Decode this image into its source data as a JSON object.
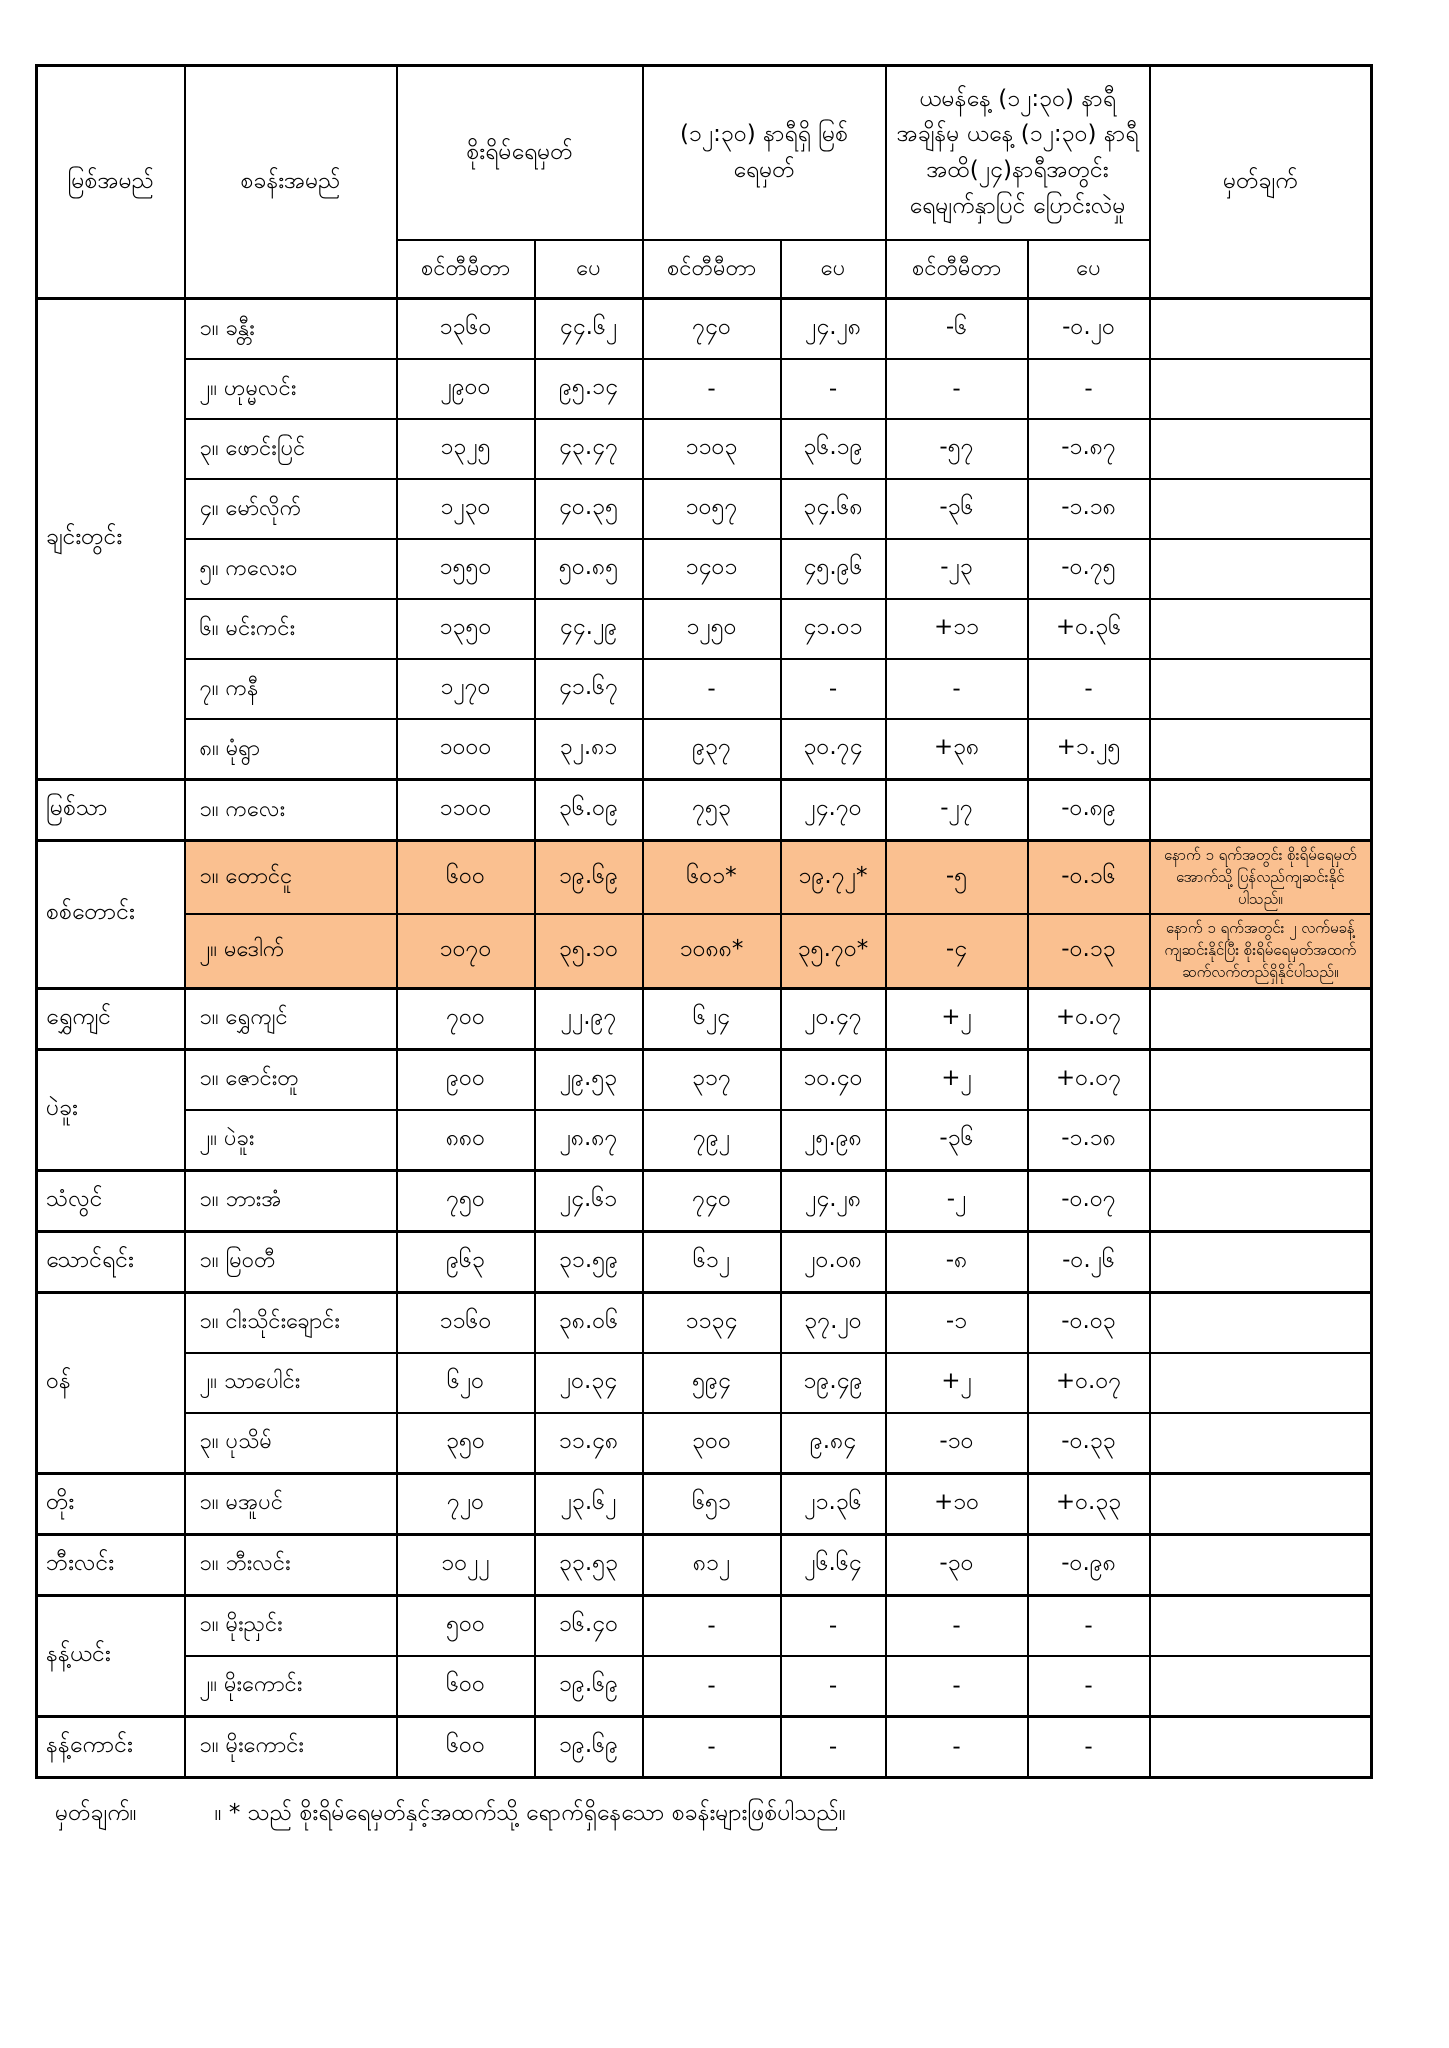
{
  "colors": {
    "highlight": "#FAC090",
    "border": "#000000",
    "background": "#FFFFFF",
    "text": "#000000"
  },
  "table": {
    "headers": {
      "river": "မြစ်အမည်",
      "station": "စခန်းအမည်",
      "danger_level": "စိုးရိမ်ရေမှတ်",
      "current_level": "(၁၂:၃၀) နာရီရှိ မြစ်ရေမှတ်",
      "change_24h": "ယမန်နေ့ (၁၂:၃၀) နာရီ အချိန်မှ ယနေ့ (၁၂:၃၀) နာရီအထိ(၂၄)နာရီအတွင်း ရေမျက်နှာပြင် ပြောင်းလဲမှု",
      "remark": "မှတ်ချက်",
      "unit_cm": "စင်တီမီတာ",
      "unit_ft": "ပေ"
    },
    "groups": [
      {
        "river": "ချင်းတွင်း",
        "stations": [
          {
            "name": "၁။ ခန္တီး",
            "danger_cm": "၁၃၆၀",
            "danger_ft": "၄၄.၆၂",
            "current_cm": "၇၄၀",
            "current_ft": "၂၄.၂၈",
            "change_cm": "-၆",
            "change_ft": "-၀.၂၀",
            "remark": "",
            "highlight": false
          },
          {
            "name": "၂။ ဟုမ္မလင်း",
            "danger_cm": "၂၉၀၀",
            "danger_ft": "၉၅.၁၄",
            "current_cm": "-",
            "current_ft": "-",
            "change_cm": "-",
            "change_ft": "-",
            "remark": "",
            "highlight": false
          },
          {
            "name": "၃။ ဖောင်းပြင်",
            "danger_cm": "၁၃၂၅",
            "danger_ft": "၄၃.၄၇",
            "current_cm": "၁၁၀၃",
            "current_ft": "၃၆.၁၉",
            "change_cm": "-၅၇",
            "change_ft": "-၁.၈၇",
            "remark": "",
            "highlight": false
          },
          {
            "name": "၄။ မော်လိုက်",
            "danger_cm": "၁၂၃၀",
            "danger_ft": "၄၀.၃၅",
            "current_cm": "၁၀၅၇",
            "current_ft": "၃၄.၆၈",
            "change_cm": "-၃၆",
            "change_ft": "-၁.၁၈",
            "remark": "",
            "highlight": false
          },
          {
            "name": "၅။ ကလေးဝ",
            "danger_cm": "၁၅၅၀",
            "danger_ft": "၅၀.၈၅",
            "current_cm": "၁၄၀၁",
            "current_ft": "၄၅.၉၆",
            "change_cm": "-၂၃",
            "change_ft": "-၀.၇၅",
            "remark": "",
            "highlight": false
          },
          {
            "name": "၆။ မင်းကင်း",
            "danger_cm": "၁၃၅၀",
            "danger_ft": "၄၄.၂၉",
            "current_cm": "၁၂၅၀",
            "current_ft": "၄၁.၀၁",
            "change_cm": "+၁၁",
            "change_ft": "+၀.၃၆",
            "remark": "",
            "highlight": false
          },
          {
            "name": "၇။ ကနီ",
            "danger_cm": "၁၂၇၀",
            "danger_ft": "၄၁.၆၇",
            "current_cm": "-",
            "current_ft": "-",
            "change_cm": "-",
            "change_ft": "-",
            "remark": "",
            "highlight": false
          },
          {
            "name": "၈။ မုံရွာ",
            "danger_cm": "၁၀၀၀",
            "danger_ft": "၃၂.၈၁",
            "current_cm": "၉၃၇",
            "current_ft": "၃၀.၇၄",
            "change_cm": "+၃၈",
            "change_ft": "+၁.၂၅",
            "remark": "",
            "highlight": false
          }
        ]
      },
      {
        "river": "မြစ်သာ",
        "stations": [
          {
            "name": "၁။ ကလေး",
            "danger_cm": "၁၁၀၀",
            "danger_ft": "၃၆.၀၉",
            "current_cm": "၇၅၃",
            "current_ft": "၂၄.၇၀",
            "change_cm": "-၂၇",
            "change_ft": "-၀.၈၉",
            "remark": "",
            "highlight": false
          }
        ]
      },
      {
        "river": "စစ်တောင်း",
        "stations": [
          {
            "name": "၁။ တောင်ငူ",
            "danger_cm": "၆၀၀",
            "danger_ft": "၁၉.၆၉",
            "current_cm": "၆၀၁*",
            "current_ft": "၁၉.၇၂*",
            "change_cm": "-၅",
            "change_ft": "-၀.၁၆",
            "remark": "နောက် ၁ ရက်အတွင်း စိုးရိမ်ရေမှတ်အောက်သို့ ပြန်လည်ကျဆင်းနိုင်ပါသည်။",
            "highlight": true
          },
          {
            "name": "၂။ မဒေါက်",
            "danger_cm": "၁၀၇၀",
            "danger_ft": "၃၅.၁၀",
            "current_cm": "၁၀၈၈*",
            "current_ft": "၃၅.၇၀*",
            "change_cm": "-၄",
            "change_ft": "-၀.၁၃",
            "remark": "နောက် ၁ ရက်အတွင်း ၂ လက်မခန့် ကျဆင်းနိုင်ပြီး စိုးရိမ်ရေမှတ်အထက် ဆက်လက်တည်ရှိနိုင်ပါသည်။",
            "highlight": true
          }
        ]
      },
      {
        "river": "ရွှေကျင်",
        "stations": [
          {
            "name": "၁။ ရွှေကျင်",
            "danger_cm": "၇၀၀",
            "danger_ft": "၂၂.၉၇",
            "current_cm": "၆၂၄",
            "current_ft": "၂၀.၄၇",
            "change_cm": "+၂",
            "change_ft": "+၀.၀၇",
            "remark": "",
            "highlight": false
          }
        ]
      },
      {
        "river": "ပဲခူး",
        "stations": [
          {
            "name": "၁။ ဇောင်းတူ",
            "danger_cm": "၉၀၀",
            "danger_ft": "၂၉.၅၃",
            "current_cm": "၃၁၇",
            "current_ft": "၁၀.၄၀",
            "change_cm": "+၂",
            "change_ft": "+၀.၀၇",
            "remark": "",
            "highlight": false
          },
          {
            "name": "၂။ ပဲခူး",
            "danger_cm": "၈၈၀",
            "danger_ft": "၂၈.၈၇",
            "current_cm": "၇၉၂",
            "current_ft": "၂၅.၉၈",
            "change_cm": "-၃၆",
            "change_ft": "-၁.၁၈",
            "remark": "",
            "highlight": false
          }
        ]
      },
      {
        "river": "သံလွင်",
        "stations": [
          {
            "name": "၁။ ဘားအံ",
            "danger_cm": "၇၅၀",
            "danger_ft": "၂၄.၆၁",
            "current_cm": "၇၄၀",
            "current_ft": "၂၄.၂၈",
            "change_cm": "-၂",
            "change_ft": "-၀.၀၇",
            "remark": "",
            "highlight": false
          }
        ]
      },
      {
        "river": "သောင်ရင်း",
        "stations": [
          {
            "name": "၁။ မြဝတီ",
            "danger_cm": "၉၆၃",
            "danger_ft": "၃၁.၅၉",
            "current_cm": "၆၁၂",
            "current_ft": "၂၀.၀၈",
            "change_cm": "-၈",
            "change_ft": "-၀.၂၆",
            "remark": "",
            "highlight": false
          }
        ]
      },
      {
        "river": "ဝန်",
        "stations": [
          {
            "name": "၁။ ငါးသိုင်းချောင်း",
            "danger_cm": "၁၁၆၀",
            "danger_ft": "၃၈.၀၆",
            "current_cm": "၁၁၃၄",
            "current_ft": "၃၇.၂၀",
            "change_cm": "-၁",
            "change_ft": "-၀.၀၃",
            "remark": "",
            "highlight": false
          },
          {
            "name": "၂။ သာပေါင်း",
            "danger_cm": "၆၂၀",
            "danger_ft": "၂၀.၃၄",
            "current_cm": "၅၉၄",
            "current_ft": "၁၉.၄၉",
            "change_cm": "+၂",
            "change_ft": "+၀.၀၇",
            "remark": "",
            "highlight": false
          },
          {
            "name": "၃။ ပုသိမ်",
            "danger_cm": "၃၅၀",
            "danger_ft": "၁၁.၄၈",
            "current_cm": "၃၀၀",
            "current_ft": "၉.၈၄",
            "change_cm": "-၁၀",
            "change_ft": "-၀.၃၃",
            "remark": "",
            "highlight": false
          }
        ]
      },
      {
        "river": "တိုး",
        "stations": [
          {
            "name": "၁။ မအူပင်",
            "danger_cm": "၇၂၀",
            "danger_ft": "၂၃.၆၂",
            "current_cm": "၆၅၁",
            "current_ft": "၂၁.၃၆",
            "change_cm": "+၁၀",
            "change_ft": "+၀.၃၃",
            "remark": "",
            "highlight": false
          }
        ]
      },
      {
        "river": "ဘီးလင်း",
        "stations": [
          {
            "name": "၁။ ဘီးလင်း",
            "danger_cm": "၁၀၂၂",
            "danger_ft": "၃၃.၅၃",
            "current_cm": "၈၁၂",
            "current_ft": "၂၆.၆၄",
            "change_cm": "-၃၀",
            "change_ft": "-၀.၉၈",
            "remark": "",
            "highlight": false
          }
        ]
      },
      {
        "river": "နန့်ယင်း",
        "stations": [
          {
            "name": "၁။ မိုးညှင်း",
            "danger_cm": "၅၀၀",
            "danger_ft": "၁၆.၄၀",
            "current_cm": "-",
            "current_ft": "-",
            "change_cm": "-",
            "change_ft": "-",
            "remark": "",
            "highlight": false
          },
          {
            "name": "၂။ မိုးကောင်း",
            "danger_cm": "၆၀၀",
            "danger_ft": "၁၉.၆၉",
            "current_cm": "-",
            "current_ft": "-",
            "change_cm": "-",
            "change_ft": "-",
            "remark": "",
            "highlight": false
          }
        ]
      },
      {
        "river": "နန့်ကောင်း",
        "stations": [
          {
            "name": "၁။ မိုးကောင်း",
            "danger_cm": "၆၀၀",
            "danger_ft": "၁၉.၆၉",
            "current_cm": "-",
            "current_ft": "-",
            "change_cm": "-",
            "change_ft": "-",
            "remark": "",
            "highlight": false
          }
        ]
      }
    ]
  },
  "footer_note": {
    "label": "မှတ်ချက်။",
    "text": "။  *  သည် စိုးရိမ်ရေမှတ်နှင့်အထက်သို့ ရောက်ရှိနေသော စခန်းများဖြစ်ပါသည်။"
  }
}
